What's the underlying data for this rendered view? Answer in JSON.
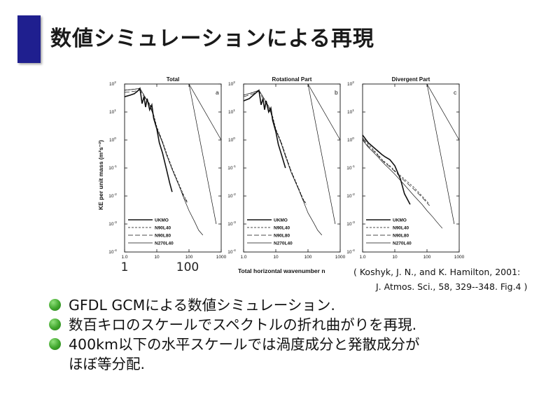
{
  "slide": {
    "title": "数値シミュレーションによる再現",
    "accent_color": "#1f1f8f"
  },
  "figure": {
    "y_axis_label": "KE per unit mass (m²s⁻²)",
    "x_axis_label": "Total horizontal wavenumber n",
    "x_ticks": [
      "1.0",
      "10",
      "100",
      "1000"
    ],
    "x_handwritten": [
      "1",
      "100"
    ],
    "y_ticks": [
      {
        "base": "10",
        "exp": "2"
      },
      {
        "base": "10",
        "exp": "1"
      },
      {
        "base": "10",
        "exp": "0"
      },
      {
        "base": "10",
        "exp": "-1"
      },
      {
        "base": "10",
        "exp": "-2"
      },
      {
        "base": "10",
        "exp": "-3"
      },
      {
        "base": "10",
        "exp": "-4"
      }
    ],
    "legend": [
      "UKMO",
      "N90L40",
      "N90L80",
      "N270L40"
    ]
  },
  "citation": {
    "line1": "( Koshyk, J. N., and K. Hamilton, 2001:",
    "line2": "J. Atmos. Sci., 58, 329--348. Fig.4 )"
  },
  "bullets": [
    {
      "text": "GFDL GCMによる数値シミュレーション."
    },
    {
      "text": "数百キロのスケールでスペクトルの折れ曲がりを再現."
    },
    {
      "text": "400km以下の水平スケールでは渦度成分と発散成分が",
      "cont": "ほぼ等分配."
    }
  ],
  "bullet_color": "#3fa52c",
  "chart_data": [
    {
      "type": "line",
      "title": "Total",
      "panel_letter": "a",
      "xscale": "log",
      "yscale": "log",
      "xlim": [
        1,
        1000
      ],
      "ylim": [
        0.0001,
        100
      ],
      "reference_lines": [
        {
          "label": "",
          "x": [
            100,
            1000
          ],
          "y": [
            100,
            1
          ]
        },
        {
          "label": "",
          "x": [
            100,
            700
          ],
          "y": [
            100,
            0.001
          ]
        }
      ],
      "series": [
        {
          "name": "UKMO",
          "style": "solid-thick",
          "x": [
            1,
            1.5,
            2,
            2.5,
            3,
            3.5,
            4,
            4.5,
            5,
            6,
            7,
            8,
            10,
            12,
            15,
            20,
            25,
            30
          ],
          "y": [
            35,
            40,
            45,
            55,
            70,
            20,
            35,
            15,
            30,
            12,
            18,
            6,
            2.5,
            0.8,
            0.35,
            0.09,
            0.03,
            0.014
          ]
        },
        {
          "name": "N90L40",
          "style": "dashed",
          "x": [
            1,
            2,
            3,
            4,
            5,
            6,
            8,
            10,
            15,
            20,
            30,
            50,
            70,
            90
          ],
          "y": [
            60,
            65,
            70,
            40,
            25,
            20,
            8,
            3,
            0.9,
            0.35,
            0.1,
            0.025,
            0.01,
            0.006
          ]
        },
        {
          "name": "N90L80",
          "style": "long-dashed",
          "x": [
            1,
            2,
            3,
            4,
            5,
            6,
            8,
            10,
            15,
            20,
            30,
            50,
            70,
            90
          ],
          "y": [
            50,
            55,
            60,
            35,
            25,
            18,
            7,
            2.7,
            0.85,
            0.3,
            0.09,
            0.022,
            0.009,
            0.0055
          ]
        },
        {
          "name": "N270L40",
          "style": "solid-thin",
          "x": [
            1,
            2,
            3,
            4,
            5,
            6,
            8,
            10,
            15,
            20,
            30,
            50,
            70,
            100,
            150,
            200,
            270
          ],
          "y": [
            60,
            65,
            70,
            40,
            25,
            18,
            7,
            2.5,
            0.8,
            0.3,
            0.09,
            0.022,
            0.008,
            0.003,
            0.0012,
            0.0006,
            0.0004
          ]
        }
      ],
      "grid": false
    },
    {
      "type": "line",
      "title": "Rotational Part",
      "panel_letter": "b",
      "xscale": "log",
      "yscale": "log",
      "xlim": [
        1,
        1000
      ],
      "ylim": [
        0.0001,
        100
      ],
      "reference_lines": [
        {
          "label": "",
          "x": [
            100,
            1000
          ],
          "y": [
            100,
            1
          ]
        },
        {
          "label": "",
          "x": [
            100,
            700
          ],
          "y": [
            100,
            0.001
          ]
        }
      ],
      "series": [
        {
          "name": "UKMO",
          "style": "solid-thick",
          "x": [
            1,
            1.5,
            2,
            2.5,
            3,
            3.5,
            4,
            4.5,
            5,
            6,
            7,
            8,
            10,
            12,
            15,
            20
          ],
          "y": [
            25,
            30,
            40,
            50,
            60,
            18,
            30,
            12,
            25,
            10,
            14,
            5,
            2,
            0.7,
            0.3,
            0.1
          ]
        },
        {
          "name": "N90L40",
          "style": "dashed",
          "x": [
            1,
            2,
            3,
            4,
            5,
            6,
            8,
            10,
            15,
            20,
            30,
            50,
            70,
            90
          ],
          "y": [
            40,
            50,
            60,
            35,
            22,
            16,
            7,
            2.5,
            0.8,
            0.3,
            0.08,
            0.02,
            0.008,
            0.005
          ]
        },
        {
          "name": "N90L80",
          "style": "long-dashed",
          "x": [
            1,
            2,
            3,
            4,
            5,
            6,
            8,
            10,
            15,
            20,
            30,
            50,
            70,
            90
          ],
          "y": [
            35,
            45,
            55,
            30,
            20,
            15,
            6,
            2.3,
            0.75,
            0.28,
            0.075,
            0.019,
            0.0075,
            0.0048
          ]
        },
        {
          "name": "N270L40",
          "style": "solid-thin",
          "x": [
            1,
            2,
            3,
            4,
            5,
            6,
            8,
            10,
            15,
            20,
            30,
            50,
            70,
            100,
            150,
            200,
            270
          ],
          "y": [
            40,
            50,
            60,
            35,
            22,
            16,
            6,
            2.3,
            0.7,
            0.26,
            0.07,
            0.018,
            0.007,
            0.0025,
            0.0011,
            0.0006,
            0.0004
          ]
        }
      ],
      "grid": false
    },
    {
      "type": "line",
      "title": "Divergent Part",
      "panel_letter": "c",
      "xscale": "log",
      "yscale": "log",
      "xlim": [
        1,
        1000
      ],
      "ylim": [
        0.0001,
        100
      ],
      "reference_lines": [
        {
          "label": "",
          "x": [
            100,
            1000
          ],
          "y": [
            100,
            1
          ]
        },
        {
          "label": "",
          "x": [
            100,
            700
          ],
          "y": [
            100,
            0.001
          ]
        }
      ],
      "series": [
        {
          "name": "UKMO",
          "style": "solid-thick",
          "x": [
            1,
            1.5,
            2,
            3,
            4,
            5,
            7,
            10,
            15,
            20,
            30
          ],
          "y": [
            1.5,
            0.8,
            0.6,
            0.4,
            0.3,
            0.25,
            0.2,
            0.12,
            0.04,
            0.012,
            0.005
          ]
        },
        {
          "name": "N90L40",
          "style": "dashed",
          "x": [
            1,
            1.5,
            2,
            3,
            4,
            5,
            7,
            10,
            20,
            40,
            70,
            120
          ],
          "y": [
            1.2,
            0.7,
            0.5,
            0.3,
            0.2,
            0.16,
            0.12,
            0.08,
            0.04,
            0.02,
            0.01,
            0.005
          ]
        },
        {
          "name": "N90L80",
          "style": "long-dashed",
          "x": [
            1,
            1.5,
            2,
            3,
            4,
            5,
            7,
            10,
            20,
            40,
            70,
            120
          ],
          "y": [
            1.1,
            0.6,
            0.45,
            0.28,
            0.19,
            0.15,
            0.11,
            0.075,
            0.035,
            0.017,
            0.009,
            0.0045
          ]
        },
        {
          "name": "N270L40",
          "style": "solid-thin",
          "x": [
            1,
            1.5,
            2,
            3,
            4,
            5,
            7,
            10,
            20,
            40,
            70,
            100,
            150,
            200,
            300
          ],
          "y": [
            1.0,
            0.55,
            0.4,
            0.25,
            0.17,
            0.13,
            0.09,
            0.06,
            0.025,
            0.01,
            0.005,
            0.003,
            0.0018,
            0.0012,
            0.0007
          ]
        }
      ],
      "grid": false
    }
  ]
}
